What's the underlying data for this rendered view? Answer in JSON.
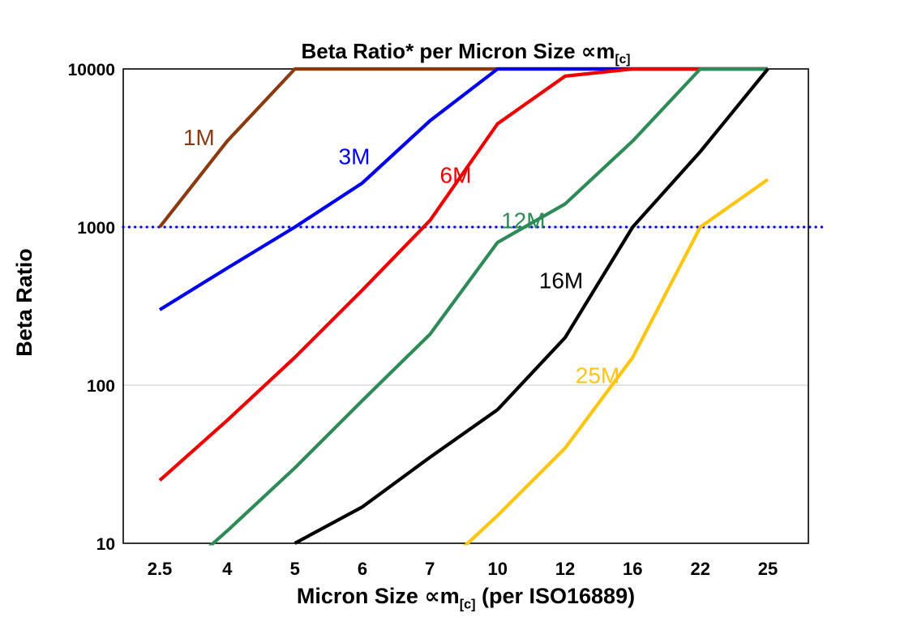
{
  "title": {
    "prefix": "Beta Ratio* per Micron Size ",
    "symbol": "∝m",
    "subscript": "[c]"
  },
  "y_axis": {
    "label": "Beta Ratio",
    "ticks": [
      {
        "label": "10000",
        "value": 10000
      },
      {
        "label": "1000",
        "value": 1000
      },
      {
        "label": "100",
        "value": 100
      },
      {
        "label": "10",
        "value": 10
      }
    ]
  },
  "x_axis": {
    "label_prefix": "Micron Size ",
    "label_symbol": "∝m",
    "label_subscript": "[c]",
    "label_suffix": " (per ISO16889)",
    "ticks": [
      "2.5",
      "4",
      "5",
      "6",
      "7",
      "10",
      "12",
      "16",
      "22",
      "25"
    ]
  },
  "chart_data": {
    "type": "line",
    "title": "Beta Ratio* per Micron Size ∝m[c]",
    "xlabel": "Micron Size ∝m[c] (per ISO16889)",
    "ylabel": "Beta Ratio",
    "x_categories": [
      2.5,
      4,
      5,
      6,
      7,
      10,
      12,
      16,
      22,
      25
    ],
    "y_scale": "log",
    "ylim": [
      10,
      10000
    ],
    "grid": {
      "color": "#c9c9c9",
      "y_values": [
        100,
        1000,
        10000
      ]
    },
    "reference_line": {
      "value": 1000,
      "color": "#0000dd",
      "style": "dotted"
    },
    "series": [
      {
        "name": "1M",
        "color": "#8b3a0f",
        "values": [
          1000,
          3500,
          10000,
          10000,
          10000,
          10000,
          10000,
          10000,
          10000,
          10000
        ],
        "label": {
          "x_index": 0.58,
          "value": 3300
        }
      },
      {
        "name": "3M",
        "color": "#0000ee",
        "values": [
          300,
          550,
          1000,
          1900,
          4700,
          10000,
          10000,
          10000,
          10000,
          10000
        ],
        "label": {
          "x_index": 2.88,
          "value": 2500
        }
      },
      {
        "name": "6M",
        "color": "#ee0000",
        "values": [
          25,
          60,
          150,
          400,
          1100,
          4500,
          9000,
          10000,
          10000,
          10000
        ],
        "label": {
          "x_index": 4.38,
          "value": 1900
        }
      },
      {
        "name": "12M",
        "color": "#2e8b57",
        "values": [
          5,
          12,
          30,
          80,
          210,
          800,
          1400,
          3500,
          10000,
          10000
        ],
        "label": {
          "x_index": 5.38,
          "value": 980
        }
      },
      {
        "name": "16M",
        "color": "#000000",
        "values": [
          null,
          null,
          10,
          17,
          35,
          70,
          200,
          1000,
          3000,
          10000
        ],
        "label": {
          "x_index": 5.94,
          "value": 410
        }
      },
      {
        "name": "25M",
        "color": "#ffc510",
        "values": [
          null,
          null,
          null,
          null,
          6,
          15,
          40,
          150,
          1000,
          2000
        ],
        "label": {
          "x_index": 6.48,
          "value": 103
        }
      }
    ]
  }
}
